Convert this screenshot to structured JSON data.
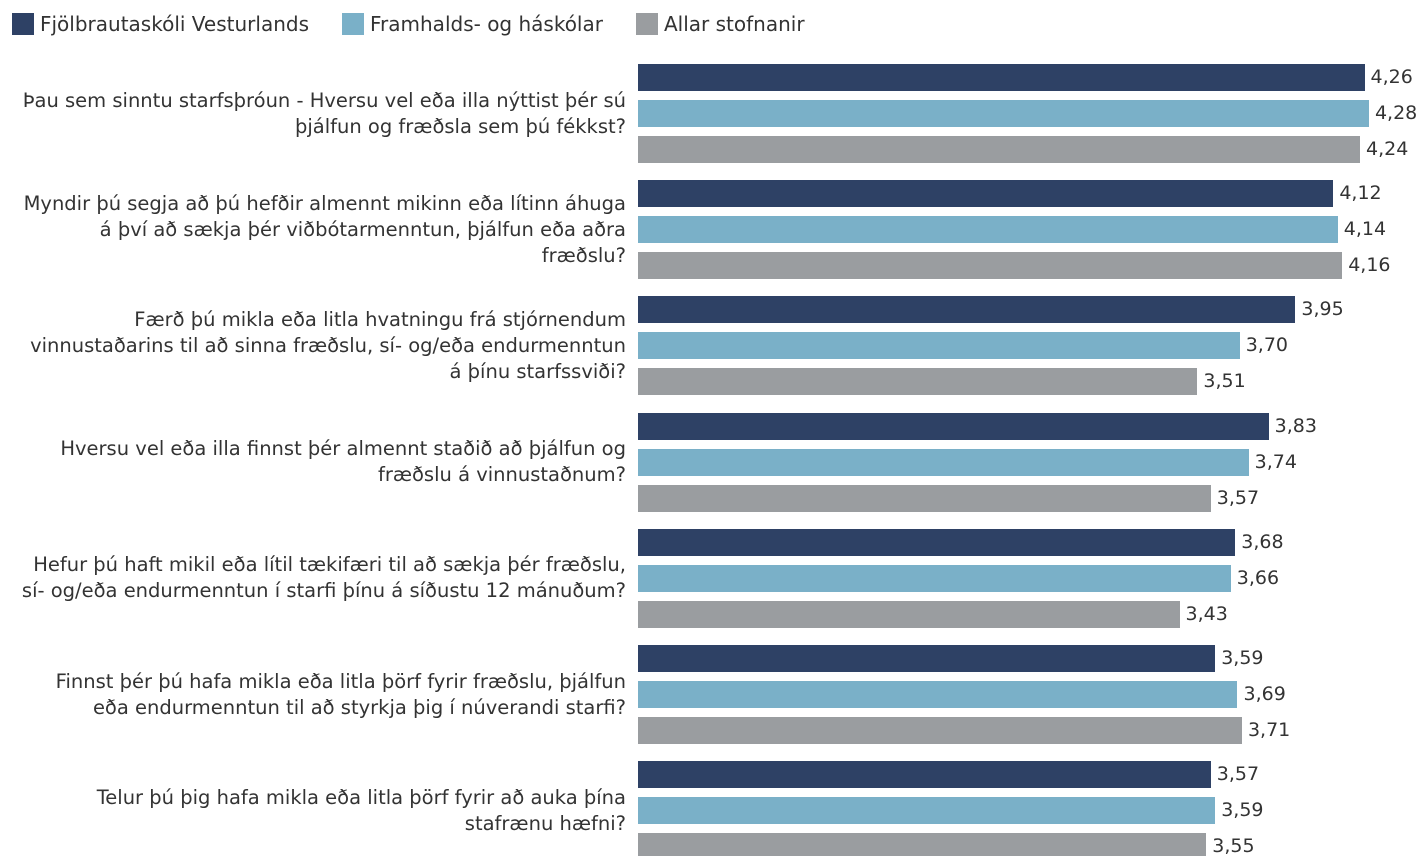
{
  "chart_data": {
    "type": "hbar",
    "categories": [
      "Þau sem sinntu starfsþróun - Hversu vel eða illa nýttist þér sú þjálfun og fræðsla sem þú fékkst?",
      "Myndir þú segja að þú hefðir almennt mikinn eða lítinn áhuga á því að sækja þér viðbótarmenntun, þjálfun eða aðra fræðslu?",
      "Færð þú mikla eða litla hvatningu frá stjórnendum vinnustaðarins til að sinna fræðslu, sí- og/eða endurmenntun á þínu starfssviði?",
      "Hversu vel eða illa finnst þér almennt staðið að þjálfun og fræðslu á vinnustaðnum?",
      "Hefur þú haft mikil eða lítil tækifæri til að sækja þér fræðslu, sí- og/eða endurmenntun í starfi þínu á síðustu 12 mánuðum?",
      "Finnst þér þú hafa mikla eða litla þörf fyrir fræðslu, þjálfun eða endurmenntun til að styrkja þig í núverandi starfi?",
      "Telur þú þig hafa mikla eða litla þörf fyrir að auka þína stafrænu hæfni?"
    ],
    "series": [
      {
        "name": "Fjölbrautaskóli Vesturlands",
        "color": "#2e4165",
        "values": [
          4.26,
          4.12,
          3.95,
          3.83,
          3.68,
          3.59,
          3.57
        ],
        "value_labels": [
          "4,26",
          "4,12",
          "3,95",
          "3,83",
          "3,68",
          "3,59",
          "3,57"
        ]
      },
      {
        "name": "Framhalds- og háskólar",
        "color": "#7ab0c8",
        "values": [
          4.28,
          4.14,
          3.7,
          3.74,
          3.66,
          3.69,
          3.59
        ],
        "value_labels": [
          "4,28",
          "4,14",
          "3,70",
          "3,74",
          "3,66",
          "3,69",
          "3,59"
        ]
      },
      {
        "name": "Allar stofnanir",
        "color": "#9a9da0",
        "values": [
          4.24,
          4.16,
          3.51,
          3.57,
          3.43,
          3.71,
          3.55
        ],
        "value_labels": [
          "4,24",
          "4,16",
          "3,51",
          "3,57",
          "3,43",
          "3,71",
          "3,55"
        ]
      }
    ],
    "xlim": [
      1,
      4.5
    ],
    "legend": "top-left"
  }
}
